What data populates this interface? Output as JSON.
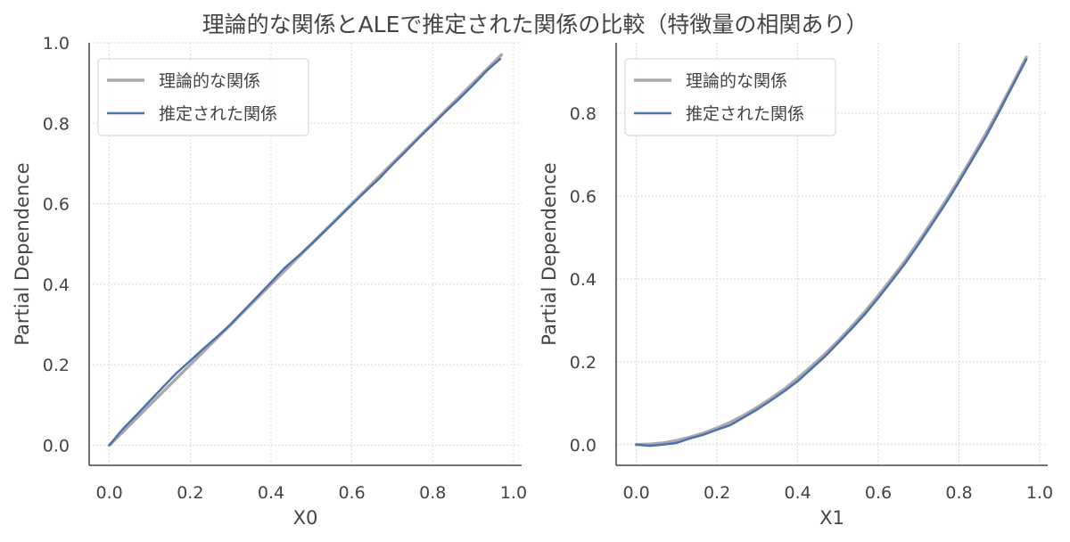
{
  "figure": {
    "title": "理論的な関係とALEで推定された関係の比較（特徴量の相関あり）"
  },
  "colors": {
    "theoretical": "#aaaaaa",
    "estimated": "#4c72b0",
    "axis": "#444444",
    "grid": "#d9d9d9"
  },
  "chart_data": [
    {
      "type": "line",
      "xlabel": "X0",
      "ylabel": "Partial Dependence",
      "xlim": [
        -0.05,
        1.02
      ],
      "ylim": [
        -0.05,
        1.0
      ],
      "xticks": [
        "0.0",
        "0.2",
        "0.4",
        "0.6",
        "0.8",
        "1.0"
      ],
      "yticks": [
        "0.0",
        "0.2",
        "0.4",
        "0.6",
        "0.8",
        "1.0"
      ],
      "grid": true,
      "legend_position": "top-left",
      "series": [
        {
          "name": "理論的な関係",
          "x": [
            0.0,
            0.97
          ],
          "y": [
            0.0,
            0.97
          ]
        },
        {
          "name": "推定された関係",
          "x": [
            0.0,
            0.033,
            0.067,
            0.1,
            0.133,
            0.167,
            0.2,
            0.233,
            0.267,
            0.3,
            0.333,
            0.367,
            0.4,
            0.433,
            0.467,
            0.5,
            0.533,
            0.567,
            0.6,
            0.633,
            0.667,
            0.7,
            0.733,
            0.767,
            0.8,
            0.833,
            0.867,
            0.9,
            0.933,
            0.967
          ],
          "y": [
            0.0,
            0.04,
            0.075,
            0.11,
            0.145,
            0.18,
            0.21,
            0.24,
            0.27,
            0.3,
            0.335,
            0.37,
            0.405,
            0.44,
            0.47,
            0.5,
            0.532,
            0.565,
            0.598,
            0.63,
            0.662,
            0.697,
            0.73,
            0.765,
            0.797,
            0.83,
            0.862,
            0.895,
            0.93,
            0.96
          ]
        }
      ]
    },
    {
      "type": "line",
      "xlabel": "X1",
      "ylabel": "Partial Dependence",
      "xlim": [
        -0.05,
        1.02
      ],
      "ylim": [
        -0.05,
        0.97
      ],
      "xticks": [
        "0.0",
        "0.2",
        "0.4",
        "0.6",
        "0.8",
        "1.0"
      ],
      "yticks": [
        "0.0",
        "0.2",
        "0.4",
        "0.6",
        "0.8"
      ],
      "grid": true,
      "legend_position": "top-left",
      "series": [
        {
          "name": "理論的な関係",
          "x": [
            0.0,
            0.033,
            0.067,
            0.1,
            0.133,
            0.167,
            0.2,
            0.233,
            0.267,
            0.3,
            0.333,
            0.367,
            0.4,
            0.433,
            0.467,
            0.5,
            0.533,
            0.567,
            0.6,
            0.633,
            0.667,
            0.7,
            0.733,
            0.767,
            0.8,
            0.833,
            0.867,
            0.9,
            0.933,
            0.967
          ],
          "y": [
            0.0,
            0.001,
            0.004,
            0.01,
            0.018,
            0.028,
            0.04,
            0.054,
            0.071,
            0.09,
            0.111,
            0.134,
            0.16,
            0.188,
            0.218,
            0.25,
            0.284,
            0.321,
            0.36,
            0.401,
            0.444,
            0.49,
            0.538,
            0.588,
            0.64,
            0.694,
            0.751,
            0.81,
            0.871,
            0.935
          ]
        },
        {
          "name": "推定された関係",
          "x": [
            0.0,
            0.033,
            0.067,
            0.1,
            0.133,
            0.167,
            0.2,
            0.233,
            0.267,
            0.3,
            0.333,
            0.367,
            0.4,
            0.433,
            0.467,
            0.5,
            0.533,
            0.567,
            0.6,
            0.633,
            0.667,
            0.7,
            0.733,
            0.767,
            0.8,
            0.833,
            0.867,
            0.9,
            0.933,
            0.967
          ],
          "y": [
            0.0,
            -0.003,
            0.0,
            0.004,
            0.015,
            0.024,
            0.036,
            0.047,
            0.066,
            0.085,
            0.106,
            0.129,
            0.153,
            0.182,
            0.212,
            0.245,
            0.279,
            0.315,
            0.354,
            0.395,
            0.438,
            0.484,
            0.532,
            0.582,
            0.634,
            0.688,
            0.744,
            0.804,
            0.866,
            0.93
          ]
        }
      ]
    }
  ]
}
